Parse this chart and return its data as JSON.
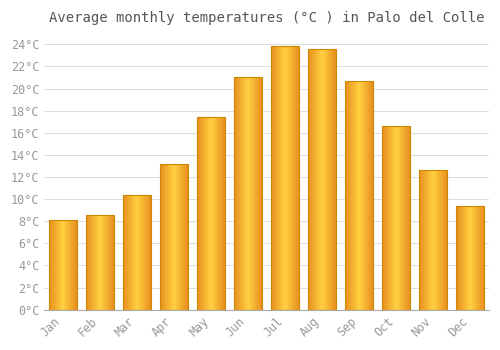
{
  "title": "Average monthly temperatures (°C ) in Palo del Colle",
  "months": [
    "Jan",
    "Feb",
    "Mar",
    "Apr",
    "May",
    "Jun",
    "Jul",
    "Aug",
    "Sep",
    "Oct",
    "Nov",
    "Dec"
  ],
  "values": [
    8.1,
    8.6,
    10.4,
    13.2,
    17.4,
    21.0,
    23.8,
    23.6,
    20.7,
    16.6,
    12.6,
    9.4
  ],
  "bar_color_center": "#FFD040",
  "bar_color_edge": "#E89020",
  "bar_border_color": "#CC8800",
  "background_color": "#FFFFFF",
  "grid_color": "#DDDDDD",
  "title_color": "#555555",
  "tick_label_color": "#999999",
  "ylim": [
    0,
    25
  ],
  "yticks": [
    0,
    2,
    4,
    6,
    8,
    10,
    12,
    14,
    16,
    18,
    20,
    22,
    24
  ],
  "title_fontsize": 10,
  "tick_fontsize": 8.5
}
